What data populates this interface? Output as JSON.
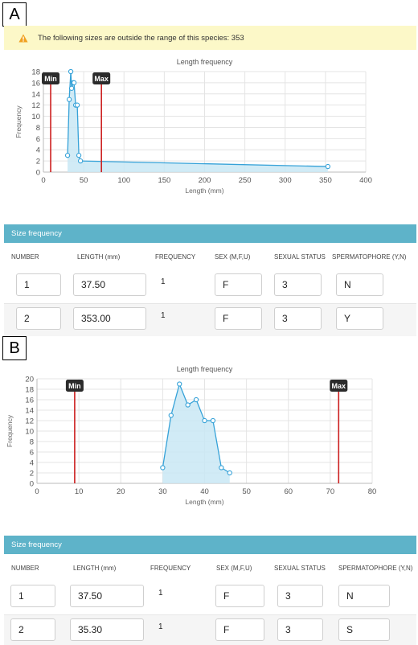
{
  "panelA": {
    "letter": "A",
    "warning": "The following sizes are outside the range of this species: 353",
    "chart": {
      "title": "Length frequency",
      "xlabel": "Length (mm)",
      "ylabel": "Frequency",
      "min_label": "Min",
      "max_label": "Max"
    },
    "table": {
      "header": "Size frequency",
      "columns": [
        "NUMBER",
        "LENGTH (mm)",
        "FREQUENCY",
        "SEX (M,F,U)",
        "SEXUAL STATUS",
        "SPERMATOPHORE (Y,N)"
      ],
      "rows": [
        {
          "number": "1",
          "length": "37.50",
          "frequency": "1",
          "sex": "F",
          "status": "3",
          "spermatophore": "N"
        },
        {
          "number": "2",
          "length": "353.00",
          "frequency": "1",
          "sex": "F",
          "status": "3",
          "spermatophore": "Y"
        }
      ]
    }
  },
  "panelB": {
    "letter": "B",
    "chart": {
      "title": "Length frequency",
      "xlabel": "Length (mm)",
      "ylabel": "Frequency",
      "min_label": "Min",
      "max_label": "Max"
    },
    "table": {
      "header": "Size frequency",
      "columns": [
        "NUMBER",
        "LENGTH (mm)",
        "FREQUENCY",
        "SEX (M,F,U)",
        "SEXUAL STATUS",
        "SPERMATOPHORE (Y,N)"
      ],
      "rows": [
        {
          "number": "1",
          "length": "37.50",
          "frequency": "1",
          "sex": "F",
          "status": "3",
          "spermatophore": "N"
        },
        {
          "number": "2",
          "length": "35.30",
          "frequency": "1",
          "sex": "F",
          "status": "3",
          "spermatophore": "S"
        }
      ]
    }
  },
  "colors": {
    "series_line": "#36a2d8",
    "series_fill": "#c9e7f5",
    "limit_line": "#cc1f1f",
    "label_bg": "#2b2b2b",
    "table_header": "#5eb3c9",
    "warning_bg": "#fcf8c8",
    "warning_icon": "#f0a020"
  },
  "icons": {
    "warning": "warning-triangle-icon"
  },
  "chart_data": [
    {
      "type": "area",
      "title": "Length frequency",
      "xlabel": "Length (mm)",
      "ylabel": "Frequency",
      "xlim": [
        0,
        400
      ],
      "ylim": [
        0,
        18
      ],
      "xticks": [
        0,
        50,
        100,
        150,
        200,
        250,
        300,
        350,
        400
      ],
      "yticks": [
        0,
        2,
        4,
        6,
        8,
        10,
        12,
        14,
        16,
        18
      ],
      "grid": true,
      "series": [
        {
          "values": [
            {
              "x": 30,
              "y": 3
            },
            {
              "x": 32,
              "y": 13
            },
            {
              "x": 34,
              "y": 18
            },
            {
              "x": 35,
              "y": 15
            },
            {
              "x": 37,
              "y": 16
            },
            {
              "x": 38,
              "y": 16
            },
            {
              "x": 40,
              "y": 12
            },
            {
              "x": 42,
              "y": 12
            },
            {
              "x": 44,
              "y": 3
            },
            {
              "x": 46,
              "y": 2
            },
            {
              "x": 353,
              "y": 1
            }
          ]
        }
      ],
      "reference_lines": [
        {
          "label": "Min",
          "x": 9
        },
        {
          "label": "Max",
          "x": 72
        }
      ]
    },
    {
      "type": "area",
      "title": "Length frequency",
      "xlabel": "Length (mm)",
      "ylabel": "Frequency",
      "xlim": [
        0,
        80
      ],
      "ylim": [
        0,
        20
      ],
      "xticks": [
        0,
        10,
        20,
        30,
        40,
        50,
        60,
        70,
        80
      ],
      "yticks": [
        0,
        2,
        4,
        6,
        8,
        10,
        12,
        14,
        16,
        18,
        20
      ],
      "grid": true,
      "series": [
        {
          "values": [
            {
              "x": 30,
              "y": 3
            },
            {
              "x": 32,
              "y": 13
            },
            {
              "x": 34,
              "y": 19
            },
            {
              "x": 36,
              "y": 15
            },
            {
              "x": 38,
              "y": 16
            },
            {
              "x": 40,
              "y": 12
            },
            {
              "x": 42,
              "y": 12
            },
            {
              "x": 44,
              "y": 3
            },
            {
              "x": 46,
              "y": 2
            }
          ]
        }
      ],
      "reference_lines": [
        {
          "label": "Min",
          "x": 9
        },
        {
          "label": "Max",
          "x": 72
        }
      ]
    }
  ]
}
